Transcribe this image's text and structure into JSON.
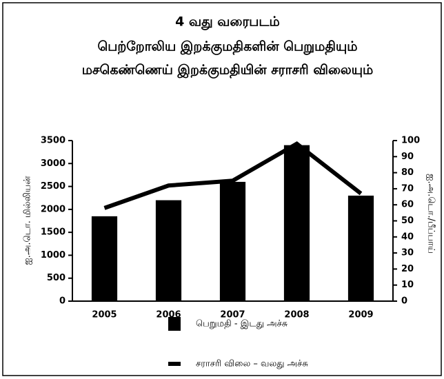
{
  "chart_data": {
    "type": "bar_line",
    "title": [
      "4 வது வரைபடம்",
      "பெற்றோலிய இறக்குமதிகளின் பெறுமதியும்",
      "மசகெண்ணெய் இறக்குமதியின் சராசரி விலையும்"
    ],
    "y_label": "ஐ.அ.டொ. மில்லியன்",
    "y2_label": "ஐ.அ.டொ./பீப்பாய்",
    "categories": [
      "2005",
      "2006",
      "2007",
      "2008",
      "2009"
    ],
    "series": [
      {
        "name": "பெறுமதி - இடது அச்சு",
        "type": "bar",
        "color": "#000000",
        "values": [
          1850,
          2200,
          2600,
          3400,
          2300
        ]
      },
      {
        "name": "சராசரி விலை – வலது அச்சு",
        "type": "line",
        "axis": "y2",
        "color": "#000000",
        "values": [
          58,
          72,
          75,
          98,
          67
        ]
      }
    ],
    "ylim": [
      0,
      3500
    ],
    "yticks": [
      0,
      500,
      1000,
      1500,
      2000,
      2500,
      3000,
      3500
    ],
    "y2lim": [
      0,
      100
    ],
    "y2ticks": [
      0,
      10,
      20,
      30,
      40,
      50,
      60,
      70,
      80,
      90,
      100
    ],
    "grid": false
  }
}
